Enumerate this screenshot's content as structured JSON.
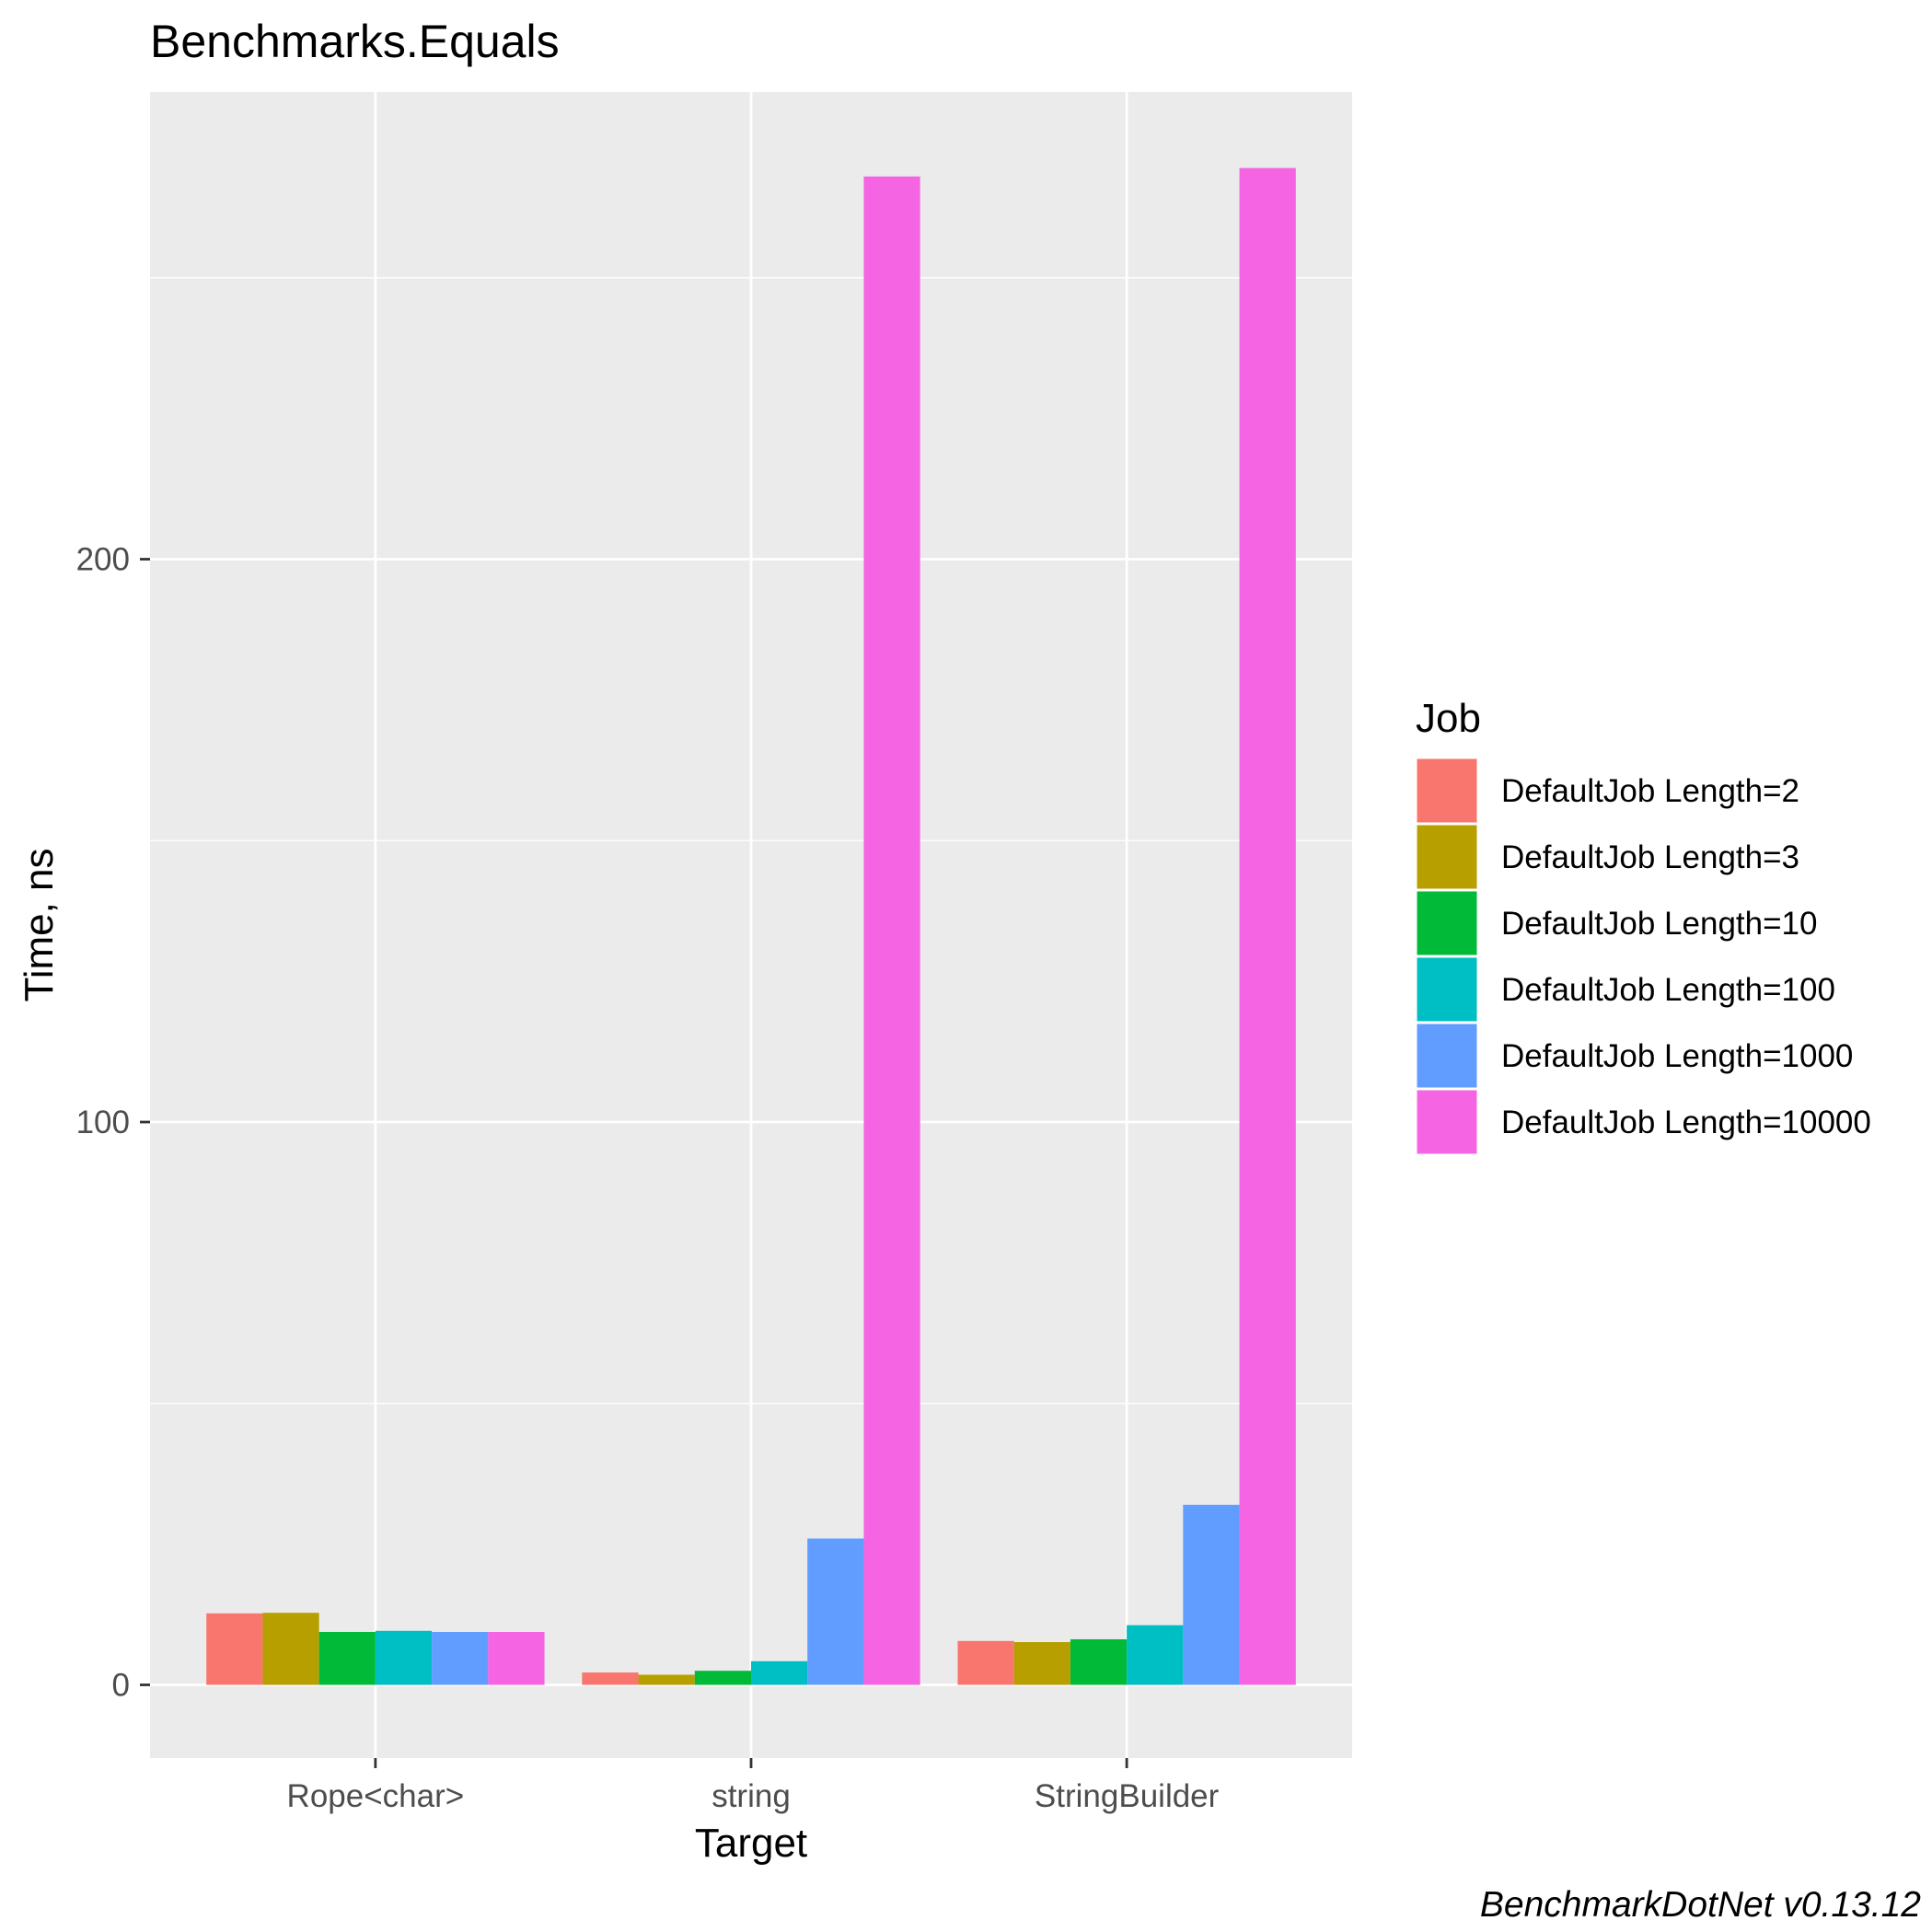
{
  "chart_data": {
    "type": "bar",
    "title": "Benchmarks.Equals",
    "xlabel": "Target",
    "ylabel": "Time, ns",
    "categories": [
      "Rope<char>",
      "string",
      "StringBuilder"
    ],
    "ylim": [
      -13,
      283
    ],
    "yticks": [
      0,
      100,
      200
    ],
    "grid": true,
    "legend": {
      "title": "Job",
      "placement": "right"
    },
    "series": [
      {
        "name": "DefaultJob Length=2",
        "color": "#F8766D",
        "values": [
          12.7,
          2.2,
          7.8
        ]
      },
      {
        "name": "DefaultJob Length=3",
        "color": "#B79F00",
        "values": [
          12.8,
          1.8,
          7.6
        ]
      },
      {
        "name": "DefaultJob Length=10",
        "color": "#00BA38",
        "values": [
          9.4,
          2.5,
          8.1
        ]
      },
      {
        "name": "DefaultJob Length=100",
        "color": "#00BFC4",
        "values": [
          9.6,
          4.2,
          10.6
        ]
      },
      {
        "name": "DefaultJob Length=1000",
        "color": "#619CFF",
        "values": [
          9.4,
          26.0,
          32.0
        ]
      },
      {
        "name": "DefaultJob Length=10000",
        "color": "#F564E3",
        "values": [
          9.4,
          268.0,
          269.5
        ]
      }
    ],
    "caption": "BenchmarkDotNet v0.13.12"
  }
}
